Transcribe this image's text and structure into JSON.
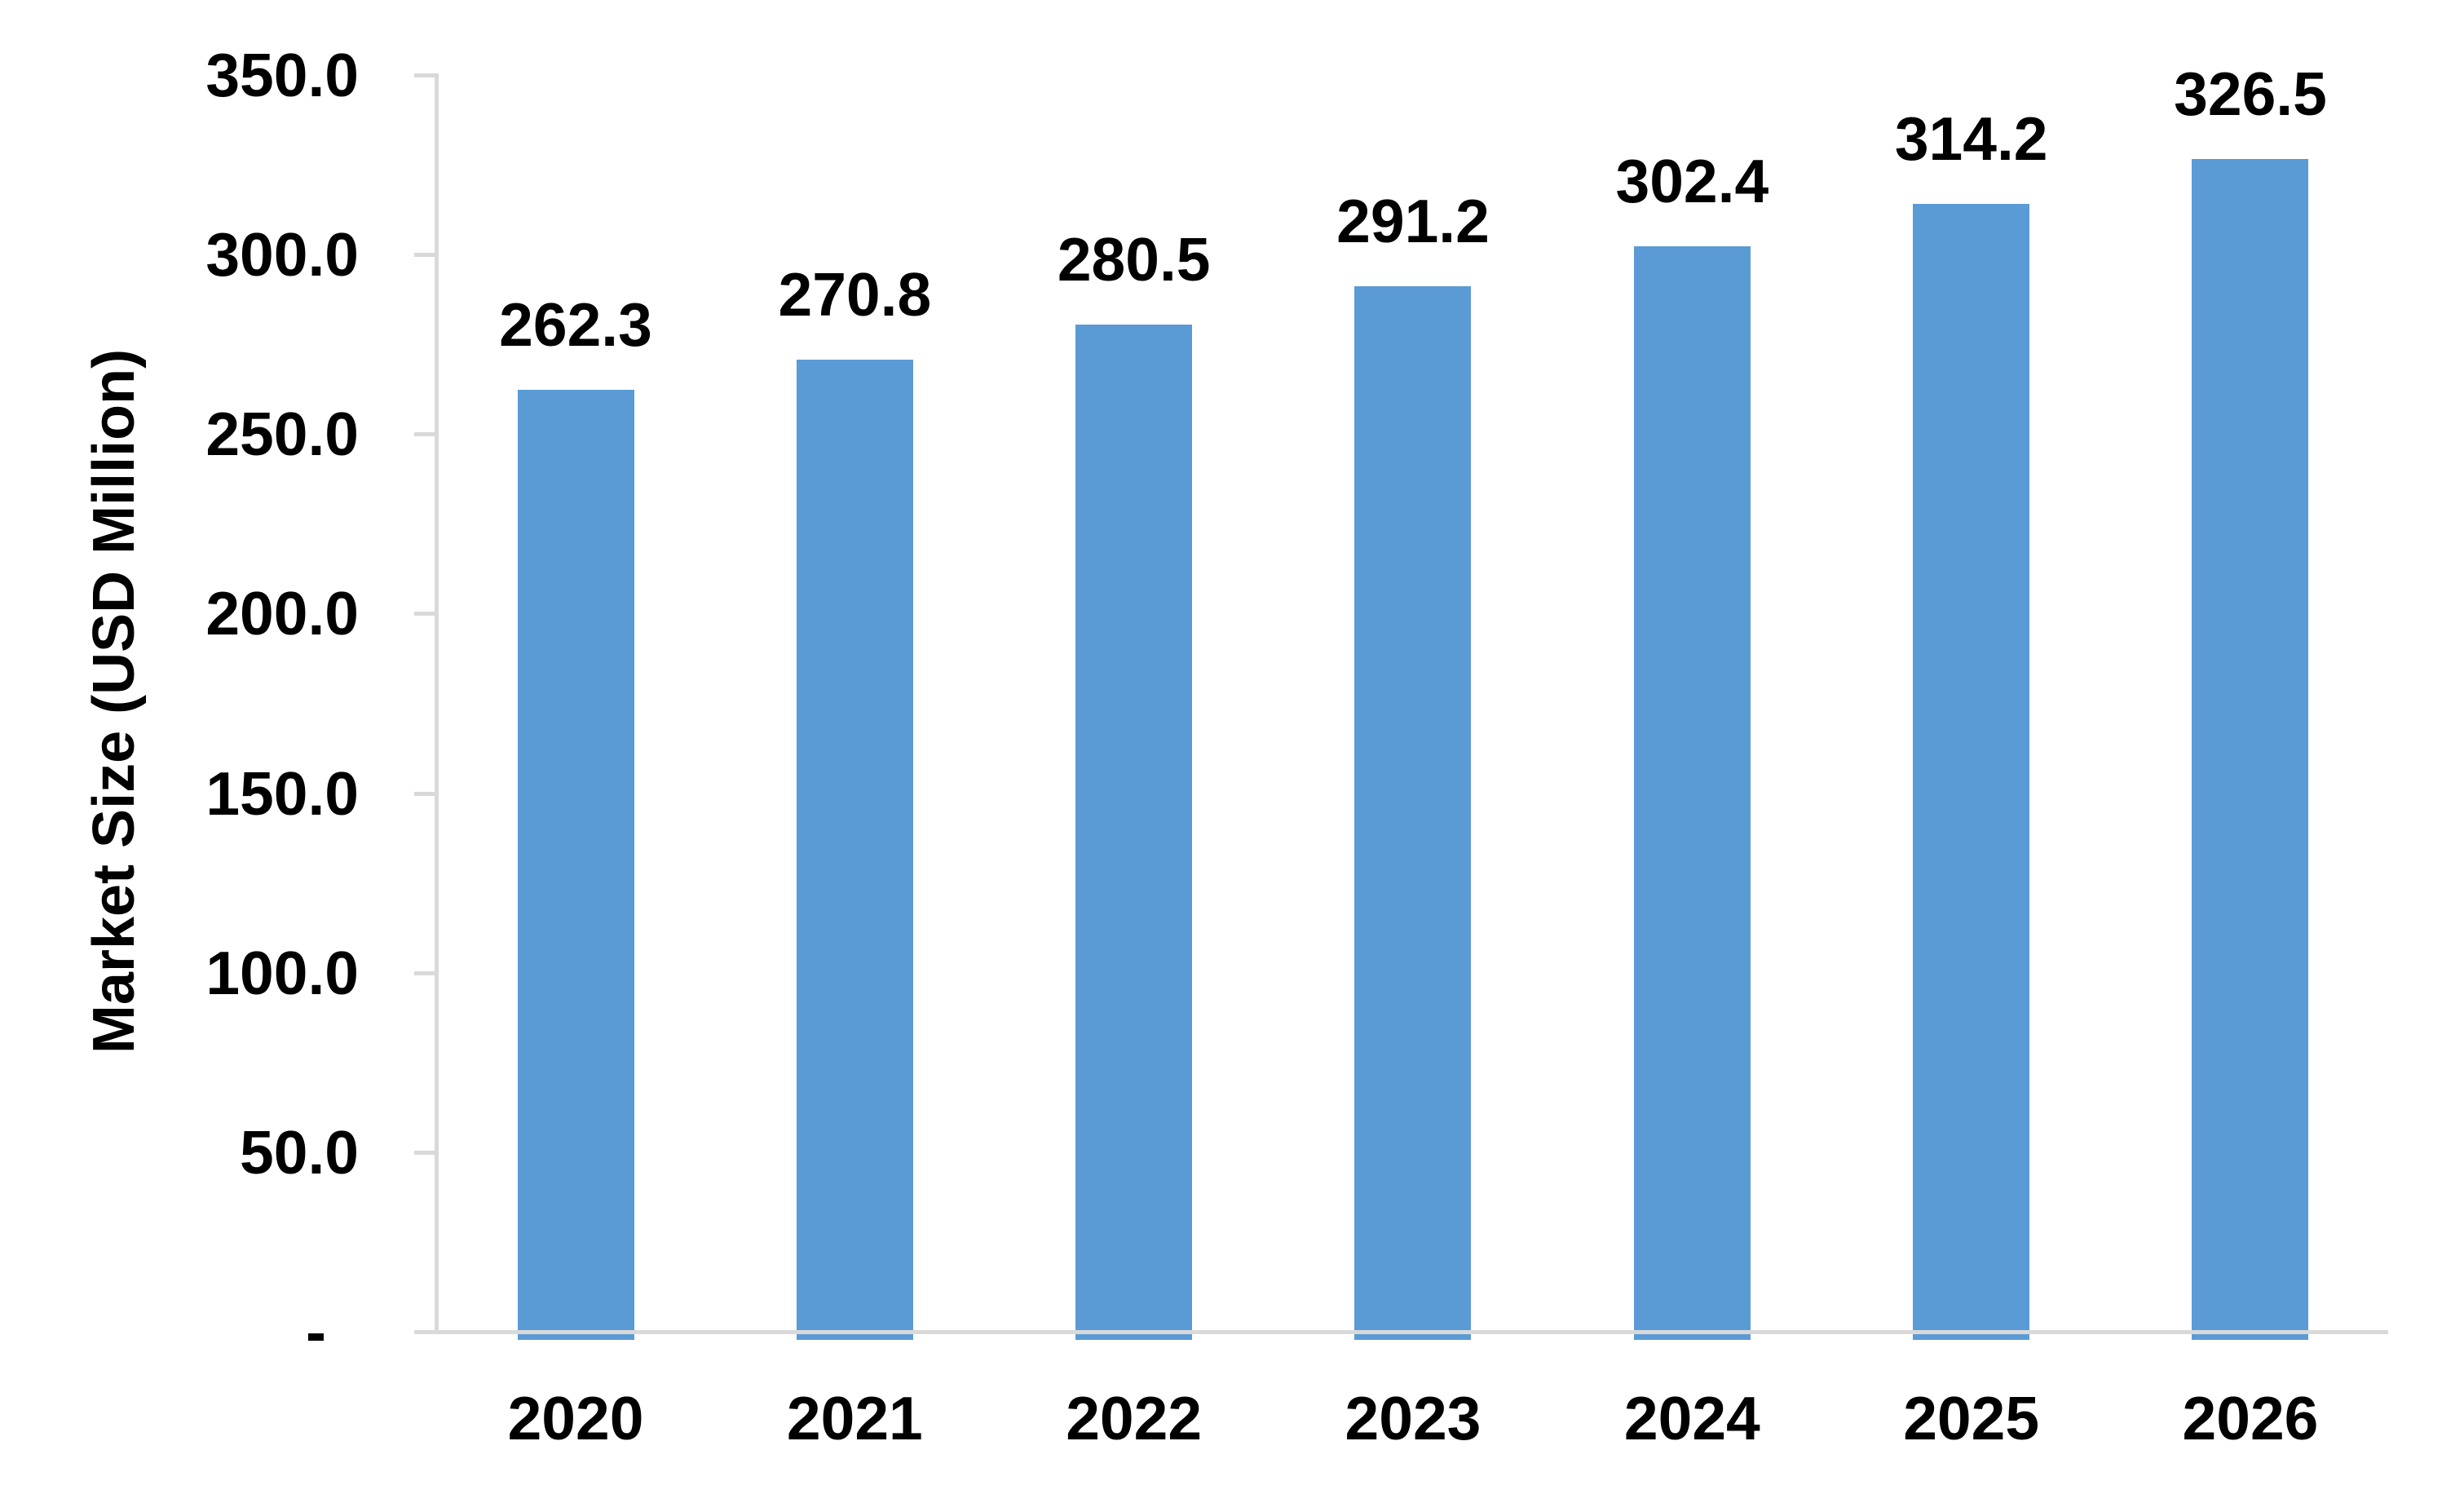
{
  "chart_data": {
    "type": "bar",
    "title": "",
    "xlabel": "",
    "ylabel": "Market Size (USD Million)",
    "categories": [
      "2020",
      "2021",
      "2022",
      "2023",
      "2024",
      "2025",
      "2026"
    ],
    "values": [
      262.3,
      270.8,
      280.5,
      291.2,
      302.4,
      314.2,
      326.5
    ],
    "value_labels": [
      "262.3",
      "270.8",
      "280.5",
      "291.2",
      "302.4",
      "314.2",
      "326.5"
    ],
    "ylim": [
      0,
      350
    ],
    "ytick_interval": 50,
    "yticks": [
      {
        "value": 350,
        "label": "350.0"
      },
      {
        "value": 300,
        "label": "300.0"
      },
      {
        "value": 250,
        "label": "250.0"
      },
      {
        "value": 200,
        "label": "200.0"
      },
      {
        "value": 150,
        "label": "150.0"
      },
      {
        "value": 100,
        "label": "100.0"
      },
      {
        "value": 50,
        "label": "50.0"
      },
      {
        "value": 0,
        "label": "-"
      }
    ],
    "grid": "off",
    "legend": "none",
    "colors": {
      "bar": "#5B9BD5",
      "axis": "#D9D9D9",
      "text": "#000000"
    }
  }
}
